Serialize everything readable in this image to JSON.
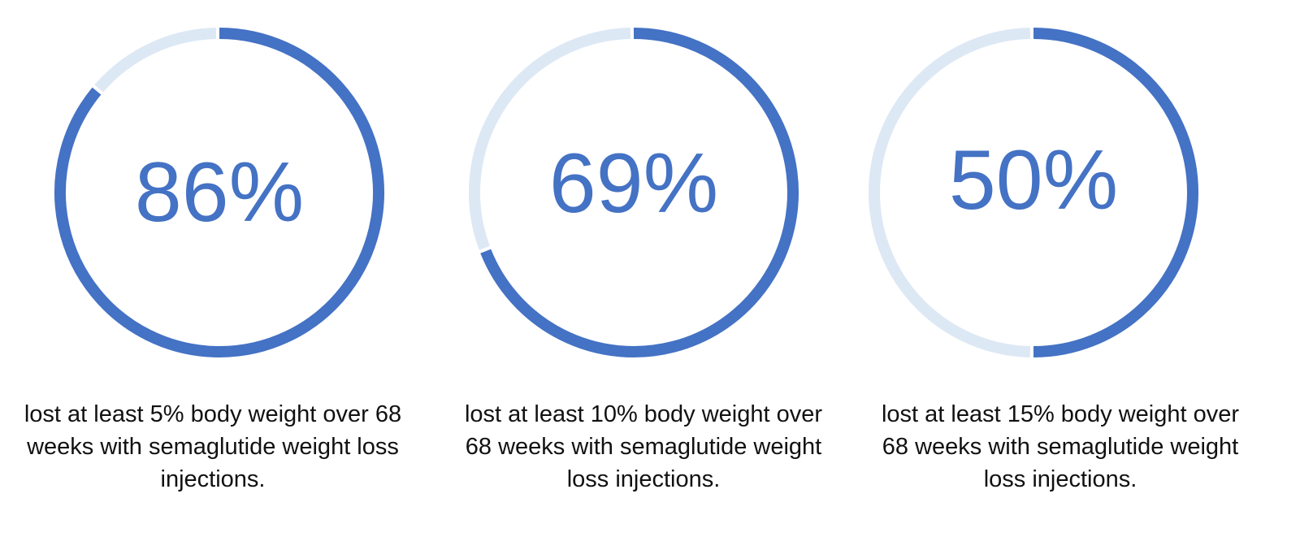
{
  "chart_data": [
    {
      "type": "progress",
      "values": [
        86
      ],
      "value_labels": [
        "86%"
      ],
      "color": "#4472c4",
      "track_color": "#dde8f5",
      "caption": "lost at least 5% body weight over 68 weeks with semaglutide weight loss injections."
    },
    {
      "type": "progress",
      "values": [
        69
      ],
      "value_labels": [
        "69%"
      ],
      "color": "#4472c4",
      "track_color": "#dde8f5",
      "caption": "lost at least 10% body weight over 68 weeks with semaglutide weight loss injections."
    },
    {
      "type": "progress",
      "values": [
        50
      ],
      "value_labels": [
        "50%"
      ],
      "color": "#4472c4",
      "track_color": "#dde8f5",
      "caption": "lost at least 15% body weight over 68 weeks with semaglutide weight loss injections."
    }
  ]
}
